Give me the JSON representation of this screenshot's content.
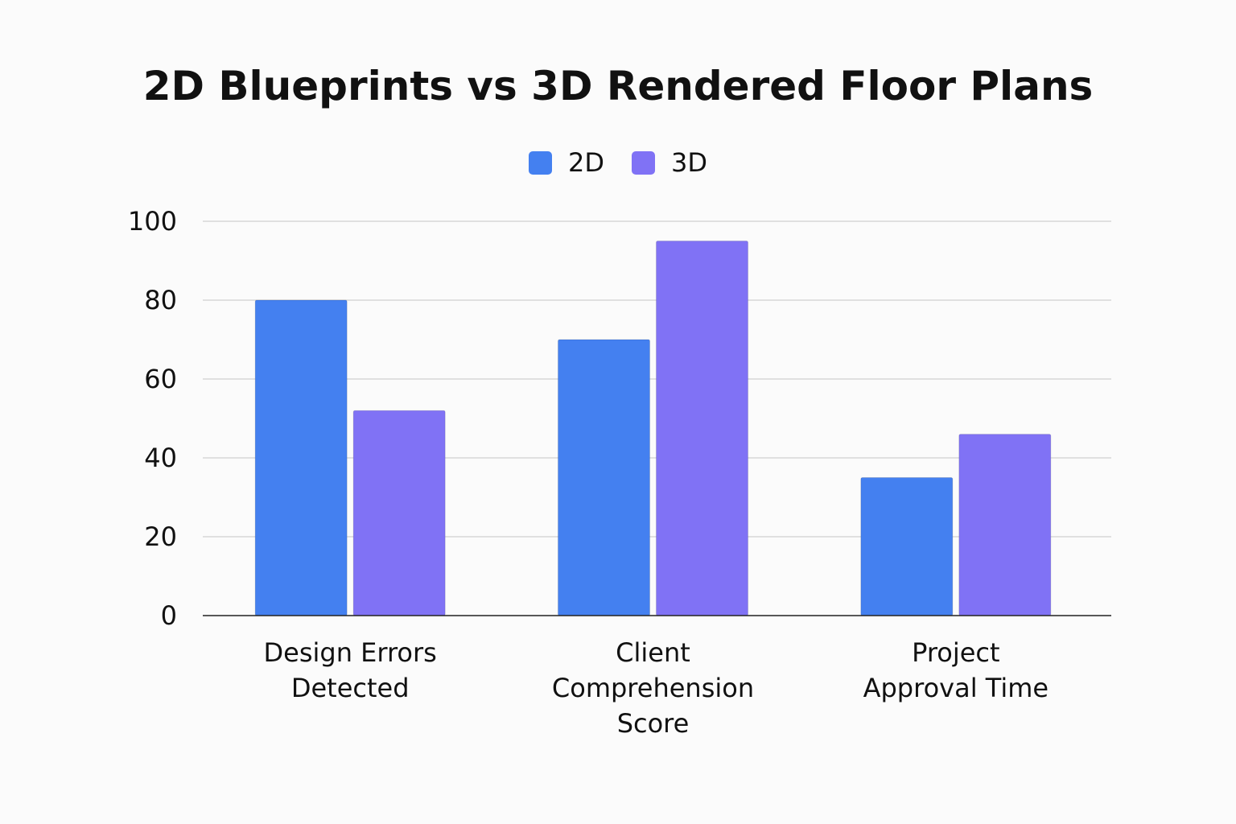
{
  "chart_data": {
    "type": "bar",
    "title": "2D Blueprints vs 3D Rendered Floor Plans",
    "xlabel": "",
    "ylabel": "",
    "categories": [
      [
        "Design Errors",
        "Detected"
      ],
      [
        "Client",
        "Comprehension",
        "Score"
      ],
      [
        "Project",
        "Approval Time"
      ]
    ],
    "series": [
      {
        "name": "2D",
        "color": "#4480F0",
        "values": [
          80,
          70,
          35
        ]
      },
      {
        "name": "3D",
        "color": "#8072F5",
        "values": [
          52,
          95,
          46
        ]
      }
    ],
    "ylim": [
      0,
      100
    ],
    "yticks": [
      0,
      20,
      40,
      60,
      80,
      100
    ],
    "grid": true,
    "legend_position": "top-center"
  }
}
